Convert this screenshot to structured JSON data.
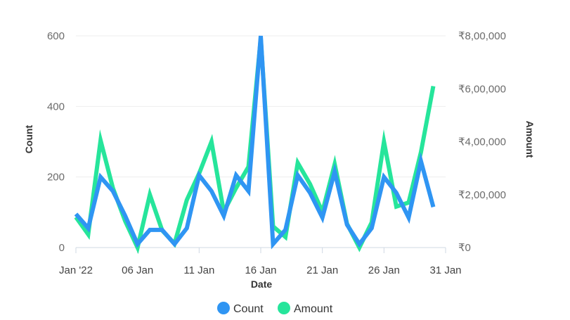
{
  "chart_data": {
    "type": "line",
    "xlabel": "Date",
    "ylabel": "Count",
    "y2label": "Amount",
    "x_ticks": [
      "Jan '22",
      "06 Jan",
      "11 Jan",
      "16 Jan",
      "21 Jan",
      "26 Jan",
      "31 Jan"
    ],
    "x_tick_days": [
      1,
      6,
      11,
      16,
      21,
      26,
      31
    ],
    "y_ticks": [
      "0",
      "200",
      "400",
      "600"
    ],
    "y2_ticks": [
      "₹0",
      "₹2,00,000",
      "₹4,00,000",
      "₹6,00,000",
      "₹8,00,000"
    ],
    "ylim": [
      0,
      600
    ],
    "y2lim": [
      0,
      800000
    ],
    "x": [
      "2022-01-01",
      "2022-01-02",
      "2022-01-03",
      "2022-01-04",
      "2022-01-05",
      "2022-01-06",
      "2022-01-07",
      "2022-01-08",
      "2022-01-09",
      "2022-01-10",
      "2022-01-11",
      "2022-01-12",
      "2022-01-13",
      "2022-01-14",
      "2022-01-15",
      "2022-01-16",
      "2022-01-17",
      "2022-01-18",
      "2022-01-19",
      "2022-01-20",
      "2022-01-21",
      "2022-01-22",
      "2022-01-23",
      "2022-01-24",
      "2022-01-25",
      "2022-01-26",
      "2022-01-27",
      "2022-01-28",
      "2022-01-29",
      "2022-01-30",
      "2022-01-31"
    ],
    "series": [
      {
        "name": "Count",
        "axis": "left",
        "color": "#2f95f3",
        "values": [
          95,
          55,
          200,
          160,
          90,
          10,
          50,
          50,
          10,
          55,
          205,
          160,
          90,
          205,
          160,
          600,
          10,
          50,
          205,
          155,
          85,
          215,
          65,
          10,
          55,
          200,
          155,
          85,
          245,
          115,
          null
        ]
      },
      {
        "name": "Amount",
        "axis": "right",
        "color": "#26e59b",
        "values": [
          115000,
          50000,
          405000,
          225000,
          100000,
          0,
          200000,
          65000,
          15000,
          180000,
          280000,
          400000,
          135000,
          225000,
          305000,
          790000,
          80000,
          40000,
          320000,
          240000,
          135000,
          315000,
          90000,
          0,
          95000,
          400000,
          155000,
          170000,
          360000,
          610000,
          null
        ]
      }
    ],
    "legend": {
      "placement": "bottom-center",
      "items": [
        "Count",
        "Amount"
      ]
    },
    "grid": {
      "horizontal": true,
      "vertical": false
    }
  }
}
